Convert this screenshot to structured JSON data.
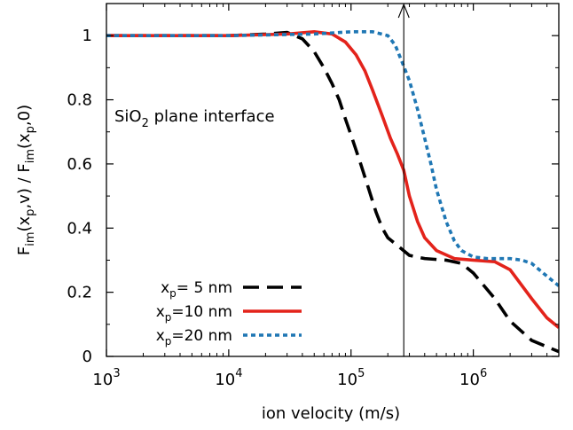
{
  "chart_data": {
    "type": "line",
    "xlabel": "ion velocity  (m/s)",
    "ylabel": "F_im(x_p,v) / F_im(x_p,0)",
    "x_scale": "log",
    "xlim": [
      1000,
      5000000
    ],
    "ylim": [
      0,
      1.1
    ],
    "xticks": [
      1000,
      10000,
      100000,
      1000000
    ],
    "xtick_labels": [
      {
        "base": "10",
        "exp": "3"
      },
      {
        "base": "10",
        "exp": "4"
      },
      {
        "base": "10",
        "exp": "5"
      },
      {
        "base": "10",
        "exp": "6"
      }
    ],
    "yticks": [
      0,
      0.2,
      0.4,
      0.6,
      0.8,
      1
    ],
    "ytick_labels": [
      "0",
      "0.2",
      "0.4",
      "0.6",
      "0.8",
      "1"
    ],
    "annotation": {
      "prefix": "SiO",
      "sub": "2",
      "suffix": " plane interface"
    },
    "vertical_line": {
      "x": 270000,
      "arrow": "up"
    },
    "legend_position": "bottom-left",
    "series": [
      {
        "name": {
          "pre": "x",
          "sub": "p",
          "post": "= 5 nm"
        },
        "color": "#000000",
        "dash": "dashed",
        "x": [
          1000,
          3000,
          10000,
          20000,
          30000,
          40000,
          50000,
          60000,
          70000,
          80000,
          90000,
          100000,
          120000,
          140000,
          160000,
          180000,
          200000,
          250000,
          300000,
          400000,
          600000,
          800000,
          1000000,
          1500000,
          2000000,
          3000000,
          4000000,
          5000000
        ],
        "y": [
          1.0,
          1.0,
          1.0,
          1.005,
          1.01,
          0.99,
          0.95,
          0.9,
          0.85,
          0.8,
          0.74,
          0.69,
          0.6,
          0.52,
          0.45,
          0.4,
          0.37,
          0.34,
          0.315,
          0.305,
          0.3,
          0.29,
          0.26,
          0.18,
          0.11,
          0.05,
          0.03,
          0.015
        ]
      },
      {
        "name": {
          "pre": "x",
          "sub": "p",
          "post": "=10 nm"
        },
        "color": "#e3231b",
        "dash": "solid",
        "x": [
          1000,
          10000,
          30000,
          50000,
          70000,
          90000,
          110000,
          130000,
          150000,
          180000,
          210000,
          240000,
          270000,
          300000,
          350000,
          400000,
          500000,
          700000,
          1000000,
          1500000,
          2000000,
          3000000,
          4000000,
          5000000
        ],
        "y": [
          1.0,
          1.0,
          1.005,
          1.012,
          1.005,
          0.98,
          0.94,
          0.89,
          0.83,
          0.75,
          0.68,
          0.63,
          0.58,
          0.5,
          0.42,
          0.37,
          0.33,
          0.305,
          0.3,
          0.295,
          0.27,
          0.18,
          0.12,
          0.09
        ]
      },
      {
        "name": {
          "pre": "x",
          "sub": "p",
          "post": "=20 nm"
        },
        "color": "#1f77b4",
        "dash": "dotted",
        "x": [
          1000,
          10000,
          50000,
          100000,
          150000,
          200000,
          230000,
          260000,
          300000,
          350000,
          400000,
          450000,
          500000,
          600000,
          700000,
          800000,
          1000000,
          1300000,
          1600000,
          2000000,
          2500000,
          3000000,
          4000000,
          5000000
        ],
        "y": [
          1.0,
          1.0,
          1.005,
          1.012,
          1.012,
          1.0,
          0.97,
          0.92,
          0.86,
          0.77,
          0.68,
          0.6,
          0.52,
          0.42,
          0.36,
          0.33,
          0.31,
          0.305,
          0.305,
          0.305,
          0.3,
          0.29,
          0.25,
          0.22
        ]
      }
    ]
  }
}
